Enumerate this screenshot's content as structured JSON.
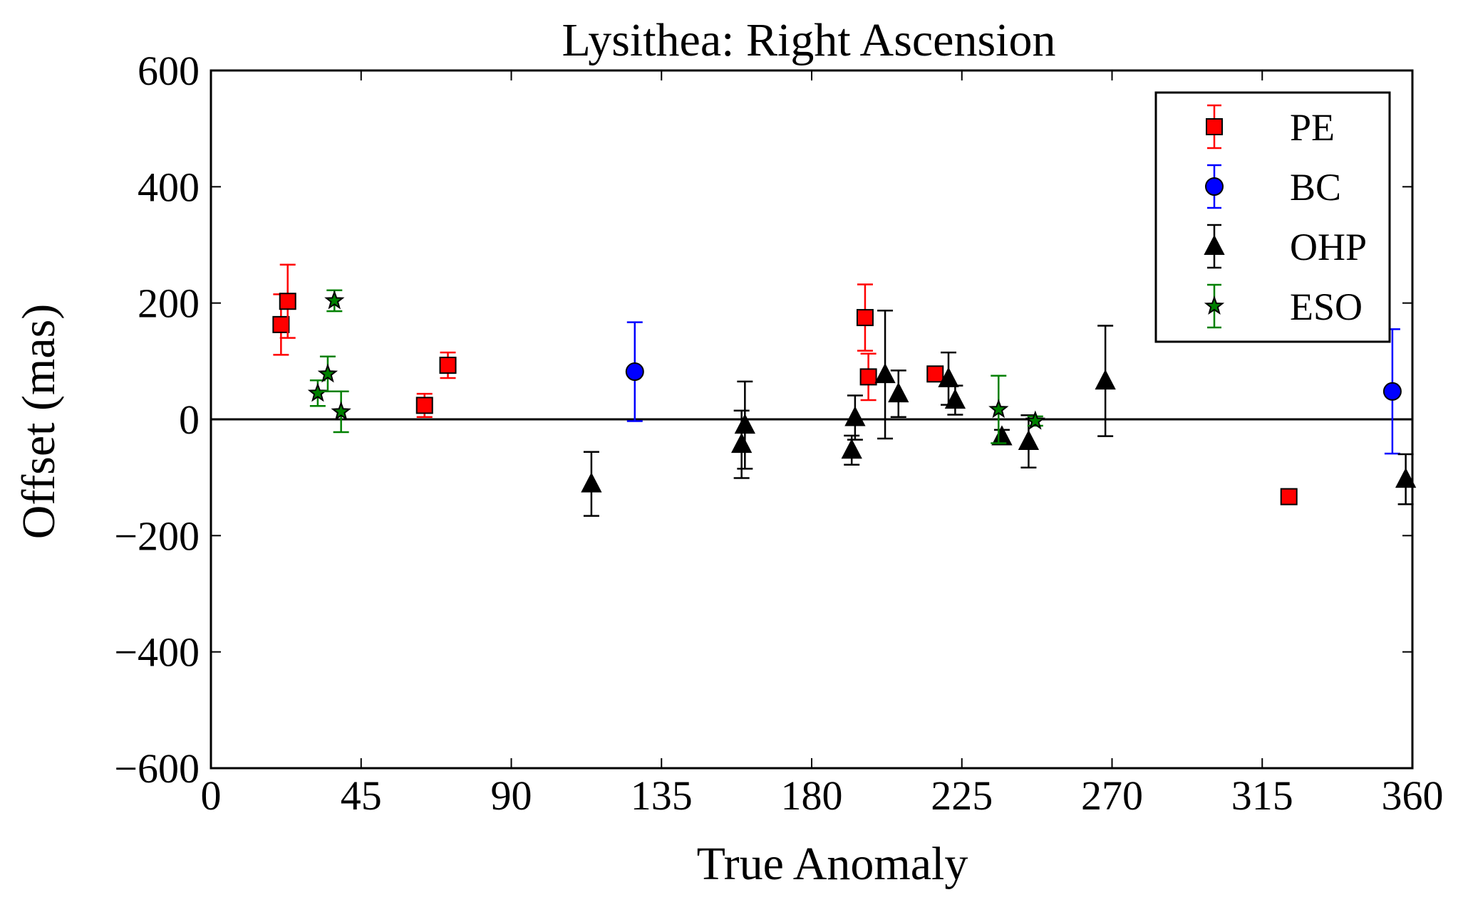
{
  "chart_data": {
    "type": "scatter",
    "title": "Lysithea: Right Ascension",
    "xlabel": "True Anomaly",
    "ylabel": "Offset (mas)",
    "xlim": [
      0,
      360
    ],
    "ylim": [
      -600,
      600
    ],
    "xticks": [
      0,
      45,
      90,
      135,
      180,
      225,
      270,
      315,
      360
    ],
    "yticks": [
      -600,
      -400,
      -200,
      0,
      200,
      400,
      600
    ],
    "ytick_labels": [
      "−600",
      "−400",
      "−200",
      "0",
      "200",
      "400",
      "600"
    ],
    "grid": false,
    "legend_position": "top-right",
    "reference_line_y": 0,
    "series": [
      {
        "name": "PE",
        "marker": "square",
        "color": "#ff0000",
        "points": [
          {
            "x": 21,
            "y": 163,
            "err": 52
          },
          {
            "x": 23,
            "y": 203,
            "err": 63
          },
          {
            "x": 64,
            "y": 24,
            "err": 20
          },
          {
            "x": 71,
            "y": 93,
            "err": 22
          },
          {
            "x": 196,
            "y": 175,
            "err": 57
          },
          {
            "x": 197,
            "y": 73,
            "err": 40
          },
          {
            "x": 217,
            "y": 78,
            "err": 0
          },
          {
            "x": 323,
            "y": -133,
            "err": 0
          }
        ]
      },
      {
        "name": "BC",
        "marker": "circle",
        "color": "#0000ff",
        "points": [
          {
            "x": 127,
            "y": 82,
            "err": 85
          },
          {
            "x": 354,
            "y": 48,
            "err": 107
          }
        ]
      },
      {
        "name": "OHP",
        "marker": "triangle",
        "color": "#000000",
        "points": [
          {
            "x": 114,
            "y": -111,
            "err": 55
          },
          {
            "x": 159,
            "y": -43,
            "err": 58
          },
          {
            "x": 160,
            "y": -10,
            "err": 75
          },
          {
            "x": 192,
            "y": -53,
            "err": 25
          },
          {
            "x": 193,
            "y": 3,
            "err": 38
          },
          {
            "x": 202,
            "y": 77,
            "err": 110
          },
          {
            "x": 206,
            "y": 44,
            "err": 40
          },
          {
            "x": 221,
            "y": 70,
            "err": 45
          },
          {
            "x": 223,
            "y": 33,
            "err": 25
          },
          {
            "x": 237,
            "y": -30,
            "err": 12
          },
          {
            "x": 245,
            "y": -38,
            "err": 45
          },
          {
            "x": 268,
            "y": 66,
            "err": 95
          },
          {
            "x": 358,
            "y": -103,
            "err": 43
          }
        ]
      },
      {
        "name": "ESO",
        "marker": "star",
        "color": "#008000",
        "points": [
          {
            "x": 32,
            "y": 45,
            "err": 22
          },
          {
            "x": 35,
            "y": 78,
            "err": 30
          },
          {
            "x": 37,
            "y": 204,
            "err": 18
          },
          {
            "x": 39,
            "y": 13,
            "err": 35
          },
          {
            "x": 236,
            "y": 17,
            "err": 58
          },
          {
            "x": 247,
            "y": -3,
            "err": 8
          }
        ]
      }
    ]
  }
}
